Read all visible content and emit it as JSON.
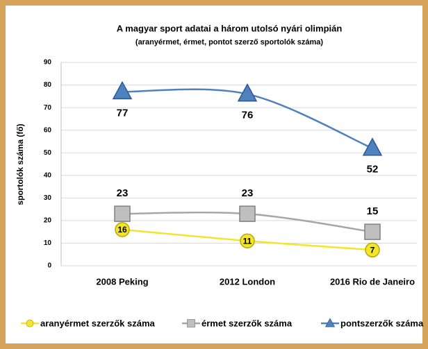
{
  "chart_data": {
    "type": "line",
    "title": "A magyar sport adatai a három utolsó nyári olimpián",
    "subtitle": "(aranyérmet, érmet, pontot szerző sportolók száma)",
    "y_label": "sportolók száma (fő)",
    "categories": [
      "2008 Peking",
      "2012 London",
      "2016 Rio de Janeiro"
    ],
    "series": [
      {
        "name": "aranyérmet szerzők száma",
        "color": "#f2e52c",
        "marker": "circle",
        "values": [
          16,
          11,
          7
        ]
      },
      {
        "name": "érmet szerzők száma",
        "color": "#a6a6a6",
        "marker": "square",
        "values": [
          23,
          23,
          15
        ]
      },
      {
        "name": "pontszerzők száma",
        "color": "#4f81bd",
        "marker": "triangle",
        "values": [
          77,
          76,
          52
        ]
      }
    ],
    "ylim": [
      0,
      90
    ],
    "yticks": [
      0,
      10,
      20,
      30,
      40,
      50,
      60,
      70,
      80,
      90
    ],
    "grid": true,
    "legend": "bottom"
  }
}
